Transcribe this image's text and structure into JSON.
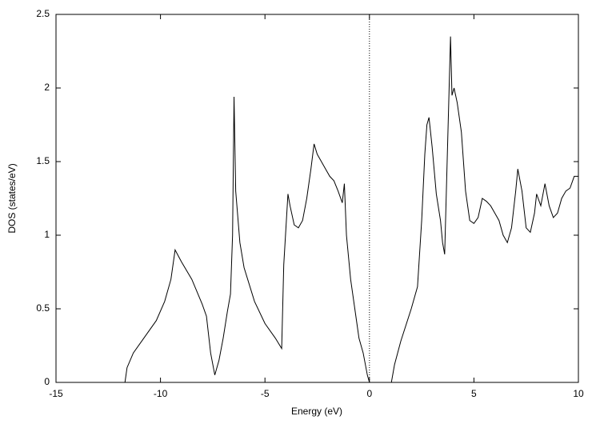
{
  "chart_data": {
    "type": "line",
    "xlabel": "Energy (eV)",
    "ylabel": "DOS (states/eV)",
    "x": [
      -11.7,
      -11.6,
      -11.3,
      -10.8,
      -10.2,
      -9.8,
      -9.5,
      -9.3,
      -9.0,
      -8.5,
      -8.0,
      -7.8,
      -7.6,
      -7.4,
      -7.2,
      -7.0,
      -6.8,
      -6.65,
      -6.55,
      -6.48,
      -6.4,
      -6.2,
      -6.0,
      -5.5,
      -5.0,
      -4.5,
      -4.2,
      -4.1,
      -3.9,
      -3.8,
      -3.6,
      -3.4,
      -3.2,
      -3.0,
      -2.8,
      -2.65,
      -2.5,
      -2.3,
      -2.1,
      -1.9,
      -1.7,
      -1.5,
      -1.3,
      -1.2,
      -1.1,
      -0.9,
      -0.7,
      -0.5,
      -0.3,
      -0.1,
      0,
      0.5,
      1.05,
      1.2,
      1.5,
      2.0,
      2.3,
      2.5,
      2.65,
      2.75,
      2.85,
      3.0,
      3.2,
      3.4,
      3.5,
      3.6,
      3.7,
      3.88,
      3.95,
      4.05,
      4.2,
      4.4,
      4.6,
      4.8,
      5.0,
      5.2,
      5.4,
      5.6,
      5.8,
      6.0,
      6.2,
      6.4,
      6.6,
      6.8,
      7.0,
      7.1,
      7.3,
      7.5,
      7.7,
      7.9,
      8.0,
      8.2,
      8.4,
      8.6,
      8.8,
      9.0,
      9.2,
      9.4,
      9.6,
      9.8,
      10
    ],
    "values": [
      0,
      0.1,
      0.2,
      0.3,
      0.42,
      0.55,
      0.7,
      0.9,
      0.82,
      0.7,
      0.53,
      0.45,
      0.2,
      0.05,
      0.15,
      0.3,
      0.48,
      0.6,
      1.0,
      1.94,
      1.3,
      0.95,
      0.78,
      0.55,
      0.4,
      0.3,
      0.23,
      0.8,
      1.28,
      1.2,
      1.07,
      1.05,
      1.1,
      1.25,
      1.45,
      1.62,
      1.55,
      1.5,
      1.45,
      1.4,
      1.37,
      1.3,
      1.22,
      1.35,
      1.0,
      0.7,
      0.5,
      0.3,
      0.2,
      0.05,
      0,
      0,
      0,
      0.12,
      0.28,
      0.5,
      0.65,
      1.1,
      1.55,
      1.75,
      1.8,
      1.6,
      1.28,
      1.1,
      0.95,
      0.87,
      1.4,
      2.35,
      1.95,
      2.0,
      1.9,
      1.7,
      1.3,
      1.1,
      1.08,
      1.12,
      1.25,
      1.23,
      1.2,
      1.15,
      1.1,
      1.0,
      0.95,
      1.05,
      1.3,
      1.45,
      1.3,
      1.05,
      1.02,
      1.15,
      1.28,
      1.2,
      1.35,
      1.2,
      1.12,
      1.15,
      1.25,
      1.3,
      1.32,
      1.4,
      1.4
    ],
    "color": "#000000",
    "xlim": [
      -15,
      10
    ],
    "xticks": [
      -15,
      -10,
      -5,
      0,
      5,
      10
    ],
    "ylim": [
      0,
      2.5
    ],
    "yticks": [
      0,
      0.5,
      1,
      1.5,
      2,
      2.5
    ],
    "vline": 0
  }
}
